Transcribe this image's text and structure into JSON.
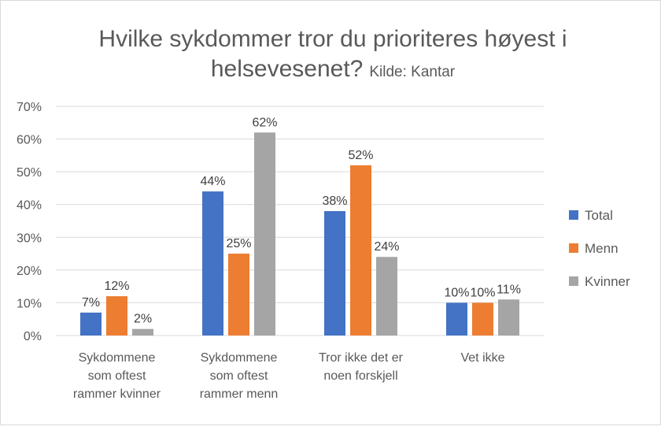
{
  "chart_data": {
    "type": "bar",
    "title": "Hvilke sykdommer tror du prioriteres høyest i helsevesenet?",
    "subtitle": "Kilde: Kantar",
    "categories": [
      [
        "Sykdommene",
        "som oftest",
        "rammer kvinner"
      ],
      [
        "Sykdommene",
        "som oftest",
        "rammer menn"
      ],
      [
        "Tror ikke det er",
        "noen forskjell"
      ],
      [
        "Vet ikke"
      ]
    ],
    "series": [
      {
        "name": "Total",
        "color": "#4472c4",
        "values": [
          7,
          44,
          38,
          10
        ],
        "labels": [
          "7%",
          "44%",
          "38%",
          "10%"
        ]
      },
      {
        "name": "Menn",
        "color": "#ed7d31",
        "values": [
          12,
          25,
          52,
          10
        ],
        "labels": [
          "12%",
          "25%",
          "52%",
          "10%"
        ]
      },
      {
        "name": "Kvinner",
        "color": "#a5a5a5",
        "values": [
          2,
          62,
          24,
          11
        ],
        "labels": [
          "2%",
          "62%",
          "24%",
          "11%"
        ]
      }
    ],
    "ylim": [
      0,
      70
    ],
    "yticks": [
      0,
      10,
      20,
      30,
      40,
      50,
      60,
      70
    ],
    "ytick_labels": [
      "0%",
      "10%",
      "20%",
      "30%",
      "40%",
      "50%",
      "60%",
      "70%"
    ],
    "grid": true,
    "legend": "right"
  }
}
